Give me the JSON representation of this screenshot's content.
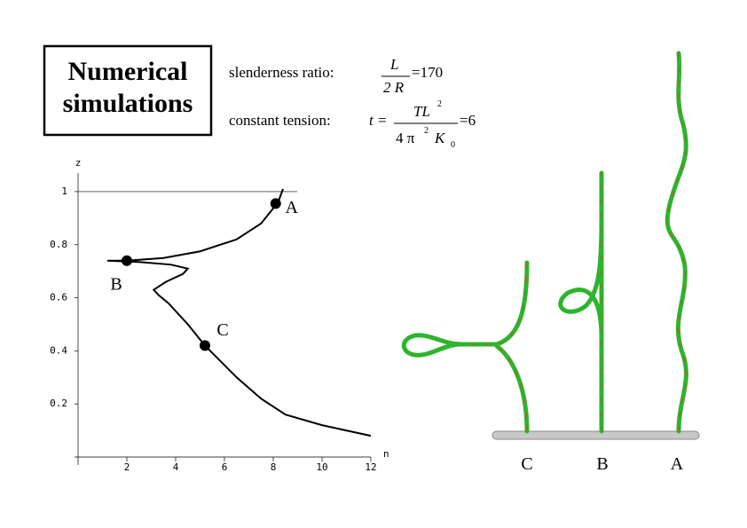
{
  "title": "Numerical simulations",
  "parameters": [
    {
      "label": "slenderness ratio:",
      "numerator": "L",
      "denominator": "2 R",
      "result": "=170"
    },
    {
      "label": "constant tension:",
      "lhs": "t =",
      "numerator": "TL",
      "numerator_exp": "2",
      "denominator": "4 π",
      "denominator_exp": "2",
      "denominator_sym": "K",
      "denominator_sub": "0",
      "result": "=6"
    }
  ],
  "figure_labels": [
    "C",
    "B",
    "A"
  ],
  "chart_data": {
    "type": "line",
    "x_label": "n",
    "y_label": "z",
    "xlim": [
      0,
      12
    ],
    "ylim": [
      -0.03,
      1.07
    ],
    "xticks": [
      2,
      4,
      6,
      8,
      10,
      12
    ],
    "yticks": [
      0.2,
      0.4,
      0.6,
      0.8,
      1
    ],
    "series": [
      {
        "color": "#000000",
        "x": [
          8.4,
          8.2,
          7.5,
          6.5,
          5,
          3.5,
          2,
          1.2,
          2.5,
          3.8,
          4.5,
          4.3,
          3.6,
          3.1,
          3.3,
          3.7,
          4.5,
          5.2,
          6.5,
          7.5,
          8.5,
          10,
          12
        ],
        "values": [
          1.01,
          0.96,
          0.88,
          0.82,
          0.775,
          0.75,
          0.74,
          0.74,
          0.735,
          0.725,
          0.71,
          0.69,
          0.66,
          0.63,
          0.61,
          0.58,
          0.5,
          0.42,
          0.3,
          0.22,
          0.16,
          0.12,
          0.08
        ]
      }
    ],
    "points": [
      {
        "name": "A",
        "x": 8.1,
        "value": 0.955
      },
      {
        "name": "B",
        "x": 2,
        "value": 0.74
      },
      {
        "name": "C",
        "x": 5.2,
        "value": 0.42
      }
    ]
  }
}
